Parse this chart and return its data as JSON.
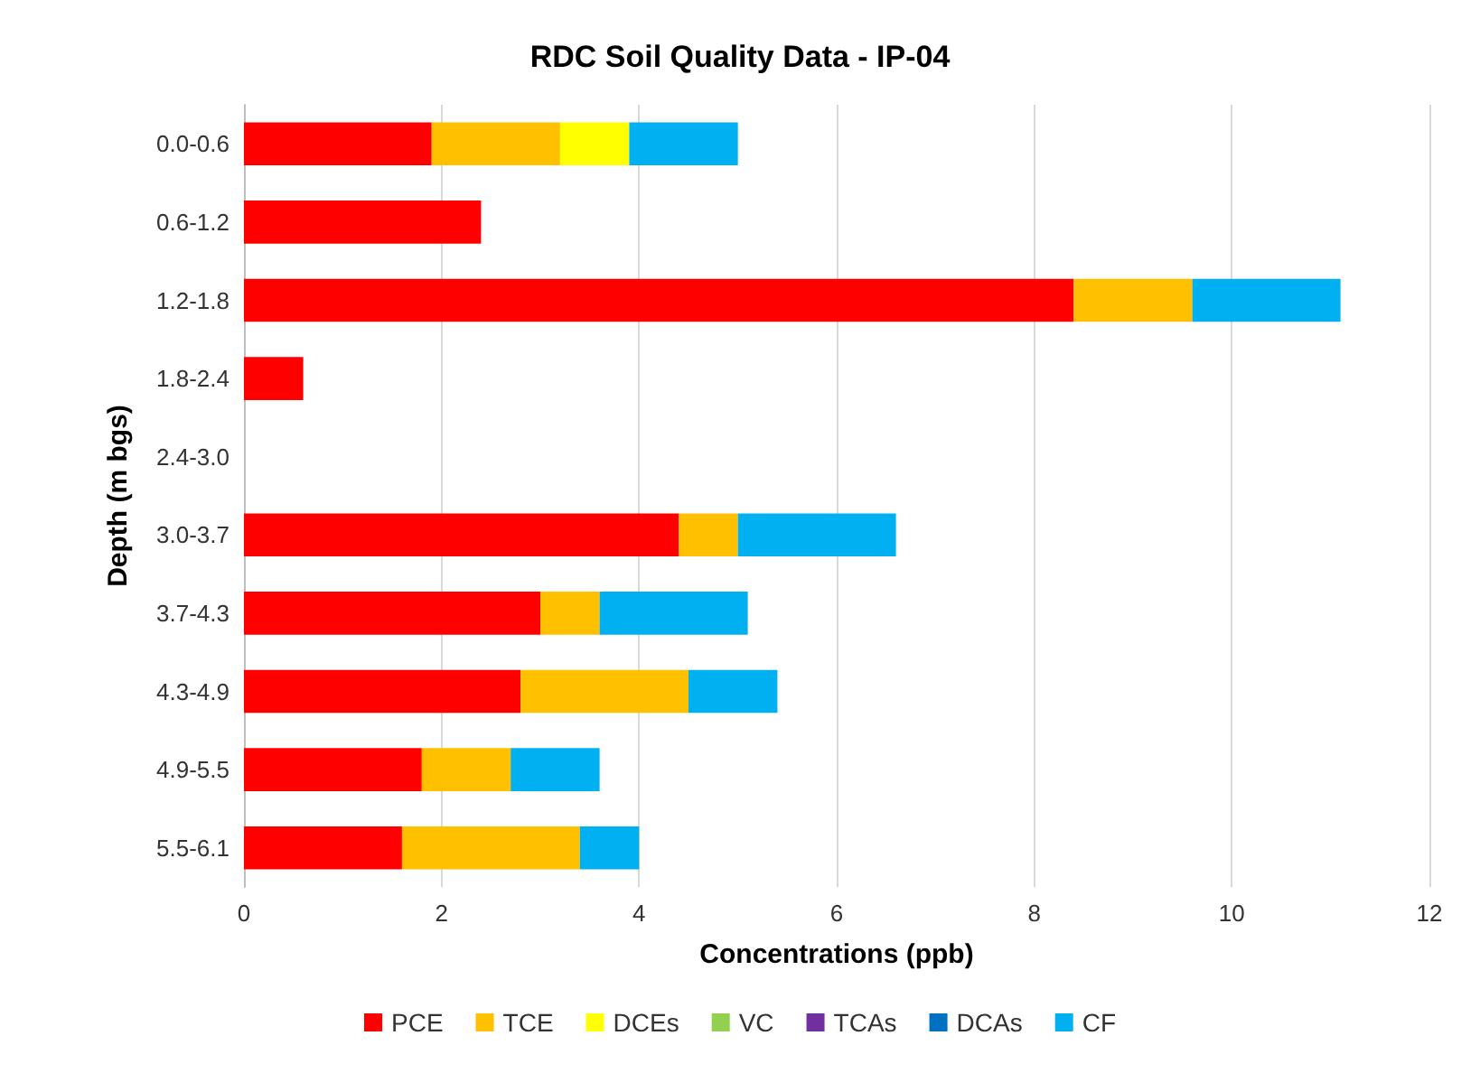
{
  "chart_data": {
    "type": "bar",
    "orientation": "horizontal",
    "stacked": true,
    "title": "RDC Soil Quality Data - IP-04",
    "xlabel": "Concentrations (ppb)",
    "ylabel": "Depth (m bgs)",
    "categories": [
      "0.0-0.6",
      "0.6-1.2",
      "1.2-1.8",
      "1.8-2.4",
      "2.4-3.0",
      "3.0-3.7",
      "3.7-4.3",
      "4.3-4.9",
      "4.9-5.5",
      "5.5-6.1"
    ],
    "series": [
      {
        "name": "PCE",
        "color": "#ff0000",
        "values": [
          1.9,
          2.4,
          8.4,
          0.6,
          0,
          4.4,
          3.0,
          2.8,
          1.8,
          1.6
        ]
      },
      {
        "name": "TCE",
        "color": "#ffc000",
        "values": [
          1.3,
          0,
          1.2,
          0,
          0,
          0.6,
          0.6,
          1.7,
          0.9,
          1.8
        ]
      },
      {
        "name": "DCEs",
        "color": "#ffff00",
        "values": [
          0.7,
          0,
          0,
          0,
          0,
          0,
          0,
          0,
          0,
          0
        ]
      },
      {
        "name": "VC",
        "color": "#92d050",
        "values": [
          0,
          0,
          0,
          0,
          0,
          0,
          0,
          0,
          0,
          0
        ]
      },
      {
        "name": "TCAs",
        "color": "#7030a0",
        "values": [
          0,
          0,
          0,
          0,
          0,
          0,
          0,
          0,
          0,
          0
        ]
      },
      {
        "name": "DCAs",
        "color": "#0070c0",
        "values": [
          0,
          0,
          0,
          0,
          0,
          0,
          0,
          0,
          0,
          0
        ]
      },
      {
        "name": "CF",
        "color": "#00b0f0",
        "values": [
          1.1,
          0,
          1.5,
          0,
          0,
          1.6,
          1.5,
          0.9,
          0.9,
          0.6
        ]
      }
    ],
    "xlim": [
      0,
      12
    ],
    "xticks": [
      0,
      2,
      4,
      6,
      8,
      10,
      12
    ],
    "grid": "x",
    "legend": "bottom"
  }
}
